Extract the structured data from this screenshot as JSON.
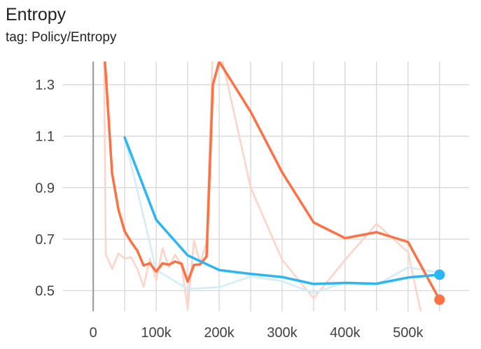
{
  "header": {
    "title": "Entropy",
    "subtitle": "tag: Policy/Entropy"
  },
  "chart_data": {
    "type": "line",
    "title": "Entropy",
    "subtitle": "tag: Policy/Entropy",
    "xlabel": "",
    "ylabel": "",
    "xlim": [
      -48000,
      597000
    ],
    "ylim": [
      0.42,
      1.39
    ],
    "x_ticks": [
      0,
      100000,
      200000,
      300000,
      400000,
      500000
    ],
    "x_tick_labels": [
      "0",
      "100k",
      "200k",
      "300k",
      "400k",
      "500k"
    ],
    "y_ticks": [
      0.5,
      0.7,
      0.9,
      1.1,
      1.3
    ],
    "y_tick_labels": [
      "0.5",
      "0.7",
      "0.9",
      "1.1",
      "1.3"
    ],
    "grid": true,
    "legend": "none",
    "series": [
      {
        "color": "#ff7043",
        "raw_color": "#ffd3c6",
        "smoothed": [
          [
            17000,
            1.45
          ],
          [
            20000,
            1.34
          ],
          [
            30000,
            0.955
          ],
          [
            40000,
            0.815
          ],
          [
            50000,
            0.73
          ],
          [
            60000,
            0.69
          ],
          [
            70000,
            0.655
          ],
          [
            80000,
            0.598
          ],
          [
            90000,
            0.606
          ],
          [
            100000,
            0.574
          ],
          [
            110000,
            0.606
          ],
          [
            120000,
            0.601
          ],
          [
            130000,
            0.613
          ],
          [
            140000,
            0.605
          ],
          [
            150000,
            0.535
          ],
          [
            160000,
            0.6
          ],
          [
            170000,
            0.602
          ],
          [
            180000,
            0.633
          ],
          [
            190000,
            1.3
          ],
          [
            200000,
            1.39
          ],
          [
            250000,
            1.195
          ],
          [
            300000,
            0.96
          ],
          [
            350000,
            0.765
          ],
          [
            400000,
            0.704
          ],
          [
            450000,
            0.727
          ],
          [
            500000,
            0.689
          ],
          [
            550000,
            0.465
          ]
        ],
        "raw": [
          [
            17000,
            1.45
          ],
          [
            20000,
            0.64
          ],
          [
            30000,
            0.585
          ],
          [
            40000,
            0.645
          ],
          [
            50000,
            0.625
          ],
          [
            60000,
            0.63
          ],
          [
            70000,
            0.585
          ],
          [
            80000,
            0.515
          ],
          [
            90000,
            0.625
          ],
          [
            100000,
            0.54
          ],
          [
            110000,
            0.665
          ],
          [
            120000,
            0.59
          ],
          [
            130000,
            0.64
          ],
          [
            140000,
            0.6
          ],
          [
            150000,
            0.43
          ],
          [
            160000,
            0.695
          ],
          [
            170000,
            0.605
          ],
          [
            180000,
            0.69
          ],
          [
            190000,
            1.45
          ],
          [
            200000,
            1.45
          ],
          [
            250000,
            0.9
          ],
          [
            300000,
            0.62
          ],
          [
            350000,
            0.47
          ],
          [
            400000,
            0.62
          ],
          [
            450000,
            0.76
          ],
          [
            500000,
            0.65
          ],
          [
            520000,
            0.42
          ]
        ],
        "last_point": [
          550000,
          0.465
        ]
      },
      {
        "color": "#29b6f6",
        "raw_color": "#d2ecf9",
        "smoothed": [
          [
            50000,
            1.095
          ],
          [
            100000,
            0.775
          ],
          [
            150000,
            0.637
          ],
          [
            200000,
            0.58
          ],
          [
            250000,
            0.565
          ],
          [
            300000,
            0.553
          ],
          [
            350000,
            0.526
          ],
          [
            400000,
            0.53
          ],
          [
            450000,
            0.527
          ],
          [
            500000,
            0.551
          ],
          [
            550000,
            0.562
          ]
        ],
        "raw": [
          [
            50000,
            1.095
          ],
          [
            100000,
            0.58
          ],
          [
            150000,
            0.507
          ],
          [
            200000,
            0.513
          ],
          [
            250000,
            0.555
          ],
          [
            300000,
            0.537
          ],
          [
            350000,
            0.49
          ],
          [
            400000,
            0.533
          ],
          [
            450000,
            0.523
          ],
          [
            500000,
            0.59
          ],
          [
            550000,
            0.57
          ]
        ],
        "last_point": [
          550000,
          0.562
        ]
      }
    ]
  }
}
